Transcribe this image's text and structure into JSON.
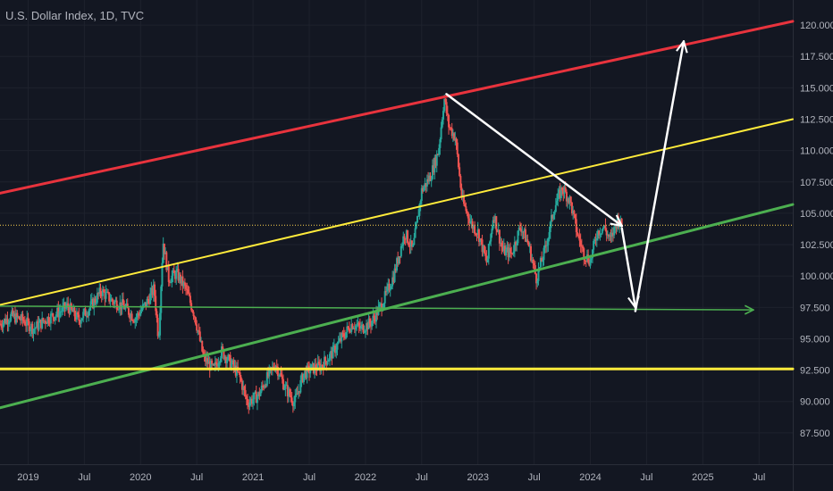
{
  "chart_data": {
    "type": "candlestick",
    "title": "U.S. Dollar Index, 1D, TVC",
    "ylim": [
      85.0,
      122.0
    ],
    "xlim": [
      2018.75,
      2025.8
    ],
    "y_ticks": [
      87.5,
      90.0,
      92.5,
      95.0,
      97.5,
      100.0,
      102.5,
      105.0,
      107.5,
      110.0,
      112.5,
      115.0,
      117.5,
      120.0
    ],
    "y_tick_labels": [
      "87.500",
      "90.000",
      "92.500",
      "95.000",
      "97.500",
      "100.000",
      "102.500",
      "105.000",
      "107.500",
      "110.000",
      "112.500",
      "115.000",
      "117.500",
      "120.000"
    ],
    "x_ticks": [
      {
        "label": "2019",
        "t": 2019.0
      },
      {
        "label": "Jul",
        "t": 2019.5
      },
      {
        "label": "2020",
        "t": 2020.0
      },
      {
        "label": "Jul",
        "t": 2020.5
      },
      {
        "label": "2021",
        "t": 2021.0
      },
      {
        "label": "Jul",
        "t": 2021.5
      },
      {
        "label": "2022",
        "t": 2022.0
      },
      {
        "label": "Jul",
        "t": 2022.5
      },
      {
        "label": "2023",
        "t": 2023.0
      },
      {
        "label": "Jul",
        "t": 2023.5
      },
      {
        "label": "2024",
        "t": 2024.0
      },
      {
        "label": "Jul",
        "t": 2024.5
      },
      {
        "label": "2025",
        "t": 2025.0
      },
      {
        "label": "Jul",
        "t": 2025.5
      }
    ],
    "grid": true,
    "price_path": [
      [
        2018.75,
        96.2
      ],
      [
        2018.85,
        96.8
      ],
      [
        2018.95,
        96.5
      ],
      [
        2019.05,
        95.8
      ],
      [
        2019.15,
        96.5
      ],
      [
        2019.25,
        97.0
      ],
      [
        2019.35,
        97.6
      ],
      [
        2019.45,
        96.5
      ],
      [
        2019.55,
        97.5
      ],
      [
        2019.65,
        98.8
      ],
      [
        2019.75,
        98.0
      ],
      [
        2019.85,
        97.6
      ],
      [
        2019.95,
        96.6
      ],
      [
        2020.05,
        97.8
      ],
      [
        2020.12,
        99.0
      ],
      [
        2020.16,
        95.0
      ],
      [
        2020.2,
        102.8
      ],
      [
        2020.25,
        99.8
      ],
      [
        2020.32,
        100.2
      ],
      [
        2020.4,
        99.0
      ],
      [
        2020.48,
        96.9
      ],
      [
        2020.56,
        93.5
      ],
      [
        2020.65,
        92.5
      ],
      [
        2020.72,
        94.0
      ],
      [
        2020.8,
        93.1
      ],
      [
        2020.88,
        92.0
      ],
      [
        2020.95,
        89.9
      ],
      [
        2021.05,
        90.5
      ],
      [
        2021.12,
        91.8
      ],
      [
        2021.2,
        93.0
      ],
      [
        2021.28,
        91.2
      ],
      [
        2021.37,
        89.9
      ],
      [
        2021.45,
        92.2
      ],
      [
        2021.52,
        92.6
      ],
      [
        2021.6,
        92.8
      ],
      [
        2021.7,
        93.8
      ],
      [
        2021.8,
        95.2
      ],
      [
        2021.88,
        96.2
      ],
      [
        2021.96,
        95.8
      ],
      [
        2022.05,
        96.3
      ],
      [
        2022.15,
        97.8
      ],
      [
        2022.25,
        100.0
      ],
      [
        2022.35,
        103.5
      ],
      [
        2022.42,
        102.0
      ],
      [
        2022.5,
        106.8
      ],
      [
        2022.58,
        108.0
      ],
      [
        2022.65,
        110.0
      ],
      [
        2022.7,
        114.2
      ],
      [
        2022.74,
        112.0
      ],
      [
        2022.8,
        111.0
      ],
      [
        2022.86,
        106.0
      ],
      [
        2022.95,
        104.0
      ],
      [
        2023.0,
        103.5
      ],
      [
        2023.08,
        101.0
      ],
      [
        2023.14,
        105.0
      ],
      [
        2023.22,
        102.0
      ],
      [
        2023.3,
        101.8
      ],
      [
        2023.38,
        104.0
      ],
      [
        2023.45,
        102.5
      ],
      [
        2023.52,
        99.8
      ],
      [
        2023.6,
        102.2
      ],
      [
        2023.68,
        105.5
      ],
      [
        2023.75,
        107.0
      ],
      [
        2023.82,
        106.0
      ],
      [
        2023.88,
        103.5
      ],
      [
        2023.94,
        101.8
      ],
      [
        2024.0,
        101.2
      ],
      [
        2024.06,
        103.5
      ],
      [
        2024.12,
        103.9
      ],
      [
        2024.18,
        102.8
      ],
      [
        2024.24,
        104.5
      ],
      [
        2024.28,
        104.0
      ]
    ],
    "lines": [
      {
        "name": "",
        "color": "#e8333d",
        "width": 3,
        "from": [
          2018.75,
          106.6
        ],
        "to": [
          2025.8,
          120.3
        ]
      },
      {
        "name": "",
        "color": "#ffeb3b",
        "width": 2,
        "from": [
          2018.75,
          97.7
        ],
        "to": [
          2025.8,
          112.5
        ]
      },
      {
        "name": "",
        "color": "#4caf50",
        "width": 3,
        "from": [
          2018.75,
          89.5
        ],
        "to": [
          2025.8,
          105.7
        ]
      },
      {
        "name": "",
        "color": "#ffeb3b",
        "width": 3,
        "from": [
          2018.75,
          92.6
        ],
        "to": [
          2025.8,
          92.6
        ]
      },
      {
        "name": "",
        "color": "#4caf50",
        "width": 1.5,
        "from": [
          2018.75,
          97.6
        ],
        "to": [
          2025.45,
          97.3
        ],
        "arrow": true
      }
    ],
    "current_price_line": 104.05,
    "arrows": [
      {
        "color": "#ffffff",
        "width": 2.5,
        "from": [
          2022.72,
          114.5
        ],
        "to": [
          2024.28,
          104.0
        ]
      },
      {
        "color": "#ffffff",
        "width": 2.5,
        "from": [
          2024.28,
          103.8
        ],
        "to": [
          2024.4,
          97.5
        ]
      },
      {
        "color": "#ffffff",
        "width": 2.5,
        "from": [
          2024.4,
          97.2
        ],
        "to": [
          2024.83,
          118.7
        ]
      }
    ],
    "colors": {
      "background": "#131722",
      "grid": "#1e222d",
      "up": "#26a69a",
      "down": "#ef5350",
      "current_price": "#ffd54f",
      "axis_text": "#b2b5be"
    }
  }
}
